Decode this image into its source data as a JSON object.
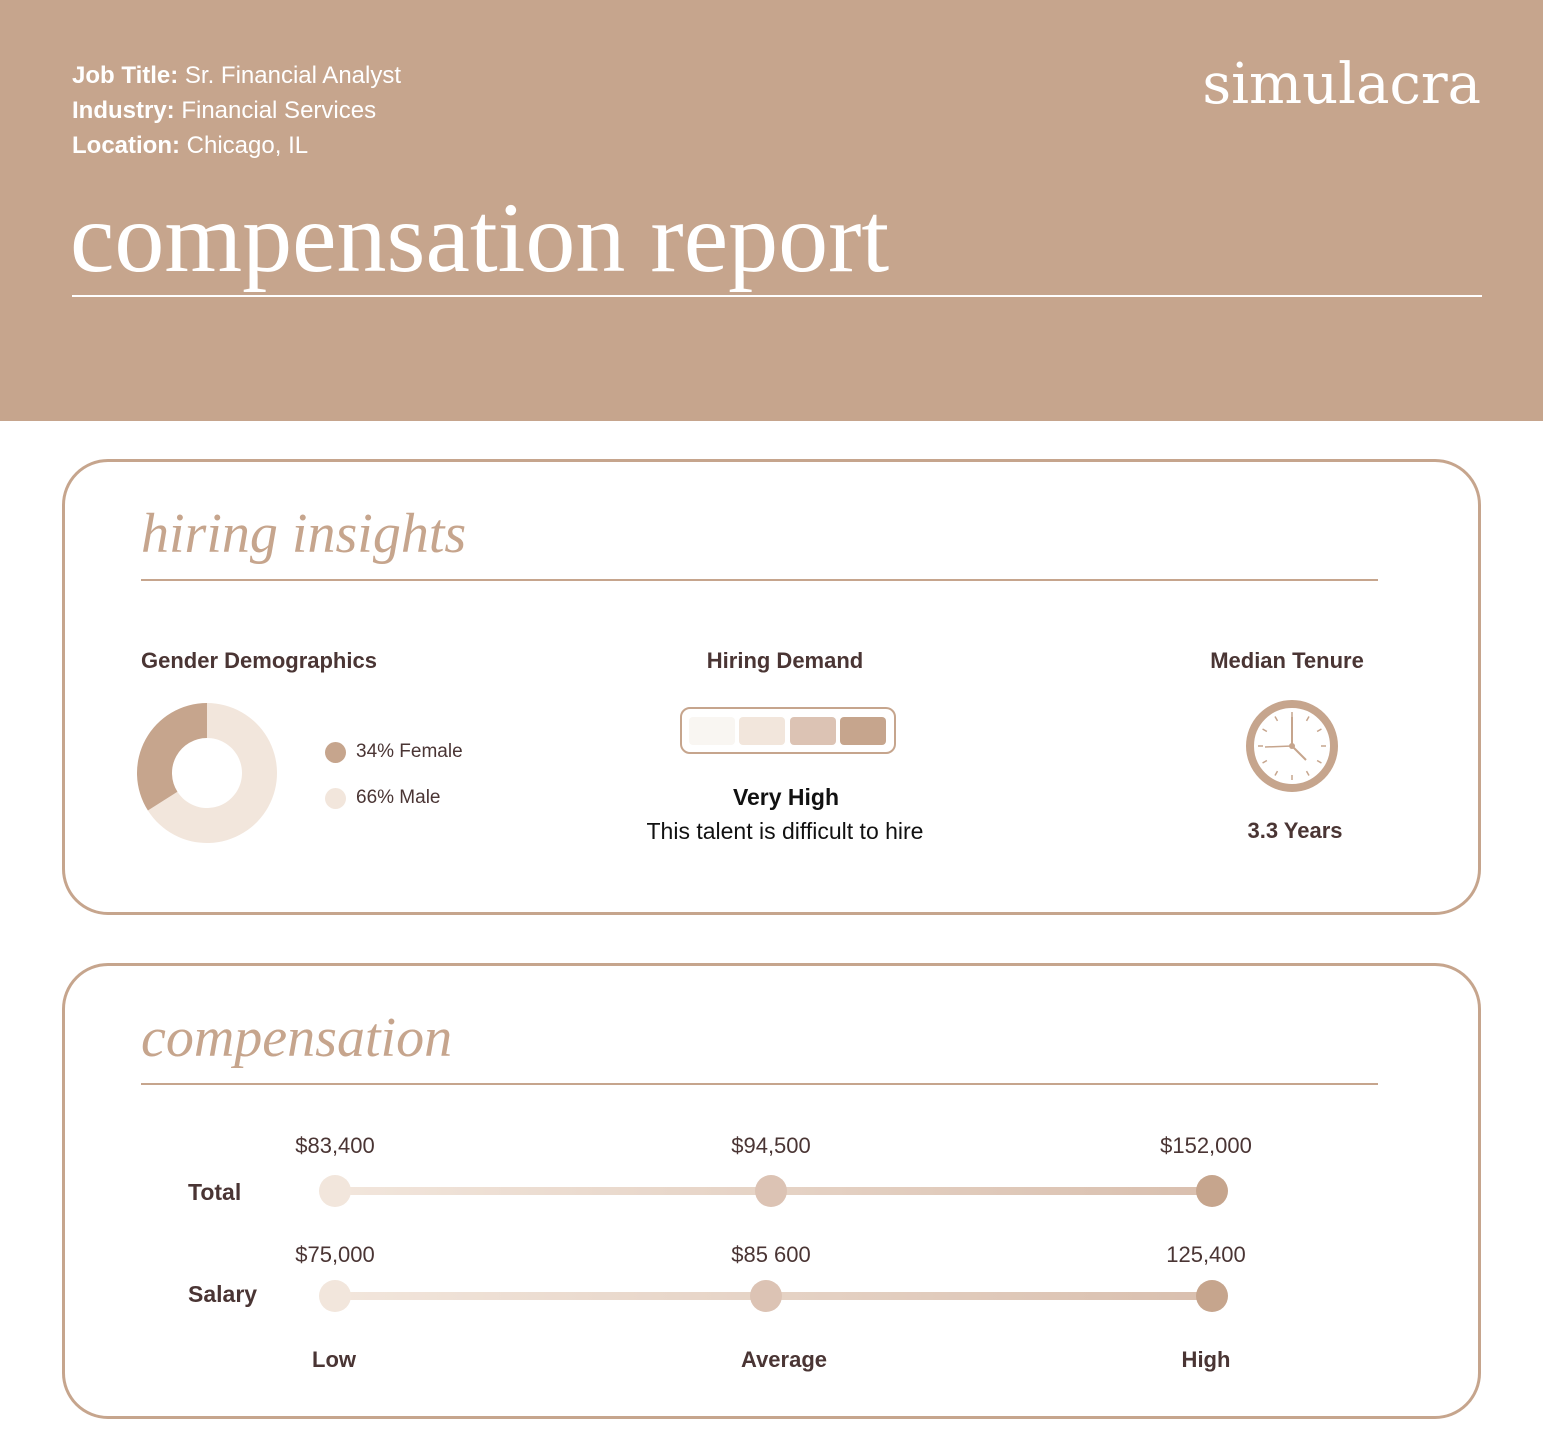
{
  "header": {
    "job_title_label": "Job Title:",
    "job_title_value": "Sr. Financial Analyst",
    "industry_label": "Industry:",
    "industry_value": "Financial Services",
    "location_label": "Location:",
    "location_value": "Chicago, IL",
    "brand": "simulacra",
    "title": "compensation report"
  },
  "colors": {
    "accent": "#c6a58d",
    "light": "#f2e6dc",
    "mid": "#dcc3b4",
    "text": "#4a3534"
  },
  "hiring_insights": {
    "title": "hiring insights",
    "gender": {
      "heading": "Gender Demographics",
      "female_pct": 34,
      "male_pct": 66,
      "female_label": "34% Female",
      "male_label": "66% Male"
    },
    "demand": {
      "heading": "Hiring Demand",
      "level": "Very High",
      "description": "This talent is difficult to hire",
      "filled_segments": 4,
      "total_segments": 4
    },
    "tenure": {
      "heading": "Median Tenure",
      "icon": "clock-icon",
      "value": "3.3 Years"
    }
  },
  "compensation": {
    "title": "compensation",
    "rows": [
      {
        "label": "Total",
        "low": {
          "value": 83400,
          "text": "$83,400"
        },
        "average": {
          "value": 94500,
          "text": "$94,500"
        },
        "high": {
          "value": 152000,
          "text": "$152,000"
        }
      },
      {
        "label": "Salary",
        "low": {
          "value": 75000,
          "text": "$75,000"
        },
        "average": {
          "value": 85600,
          "text": "$85 600"
        },
        "high": {
          "value": 125400,
          "text": "125,400"
        }
      }
    ],
    "axis": {
      "low": "Low",
      "average": "Average",
      "high": "High"
    }
  }
}
